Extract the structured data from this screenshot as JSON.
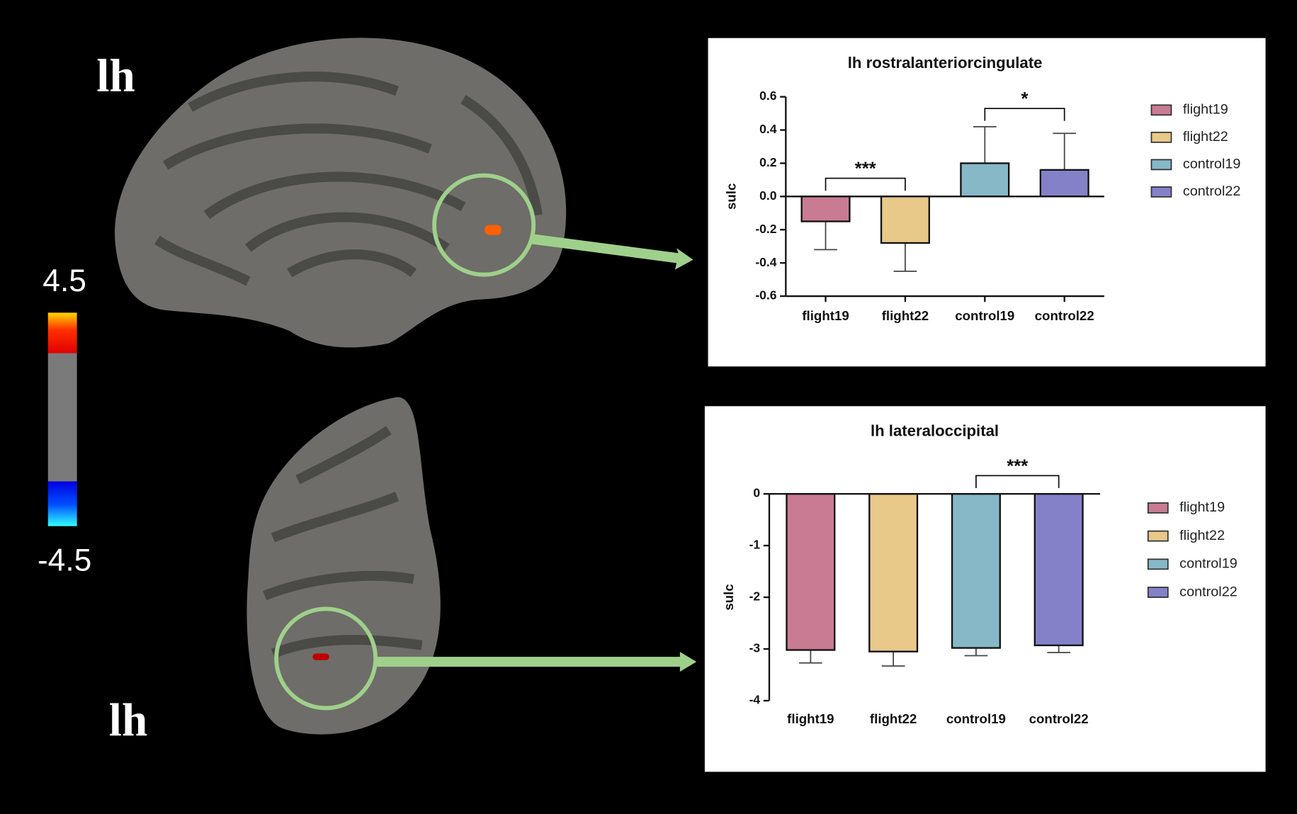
{
  "hemisphere_labels": [
    "lh",
    "lh"
  ],
  "colorbar": {
    "max": 4.5,
    "min": -4.5
  },
  "chart_data": [
    {
      "type": "bar",
      "title": "lh rostralanteriorcingulate",
      "ylabel": "sulc",
      "categories": [
        "flight19",
        "flight22",
        "control19",
        "control22"
      ],
      "values": [
        -0.15,
        -0.28,
        0.2,
        0.16
      ],
      "errors": [
        0.17,
        0.17,
        0.22,
        0.22
      ],
      "colors": [
        "#c97b93",
        "#e8c98a",
        "#86b8c8",
        "#8481c8"
      ],
      "ylim": [
        -0.6,
        0.6
      ],
      "yticks": [
        0.6,
        0.4,
        0.2,
        {
          "value": 0,
          "label": "0.0"
        },
        -0.2,
        -0.4,
        -0.6
      ],
      "annotations": [
        {
          "text": "***",
          "from": "flight19",
          "to": "flight22"
        },
        {
          "text": "*",
          "from": "control19",
          "to": "control22"
        }
      ]
    },
    {
      "type": "bar",
      "title": "lh lateraloccipital",
      "ylabel": "sulc",
      "categories": [
        "flight19",
        "flight22",
        "control19",
        "control22"
      ],
      "values": [
        -3.02,
        -3.05,
        -2.98,
        -2.93
      ],
      "errors": [
        0.25,
        0.28,
        0.15,
        0.14
      ],
      "colors": [
        "#c97b93",
        "#e8c98a",
        "#86b8c8",
        "#8481c8"
      ],
      "ylim": [
        -4,
        0
      ],
      "yticks": [
        0,
        -1,
        -2,
        -3,
        -4
      ],
      "annotations": [
        {
          "text": "***",
          "from": "control19",
          "to": "control22"
        }
      ]
    }
  ]
}
